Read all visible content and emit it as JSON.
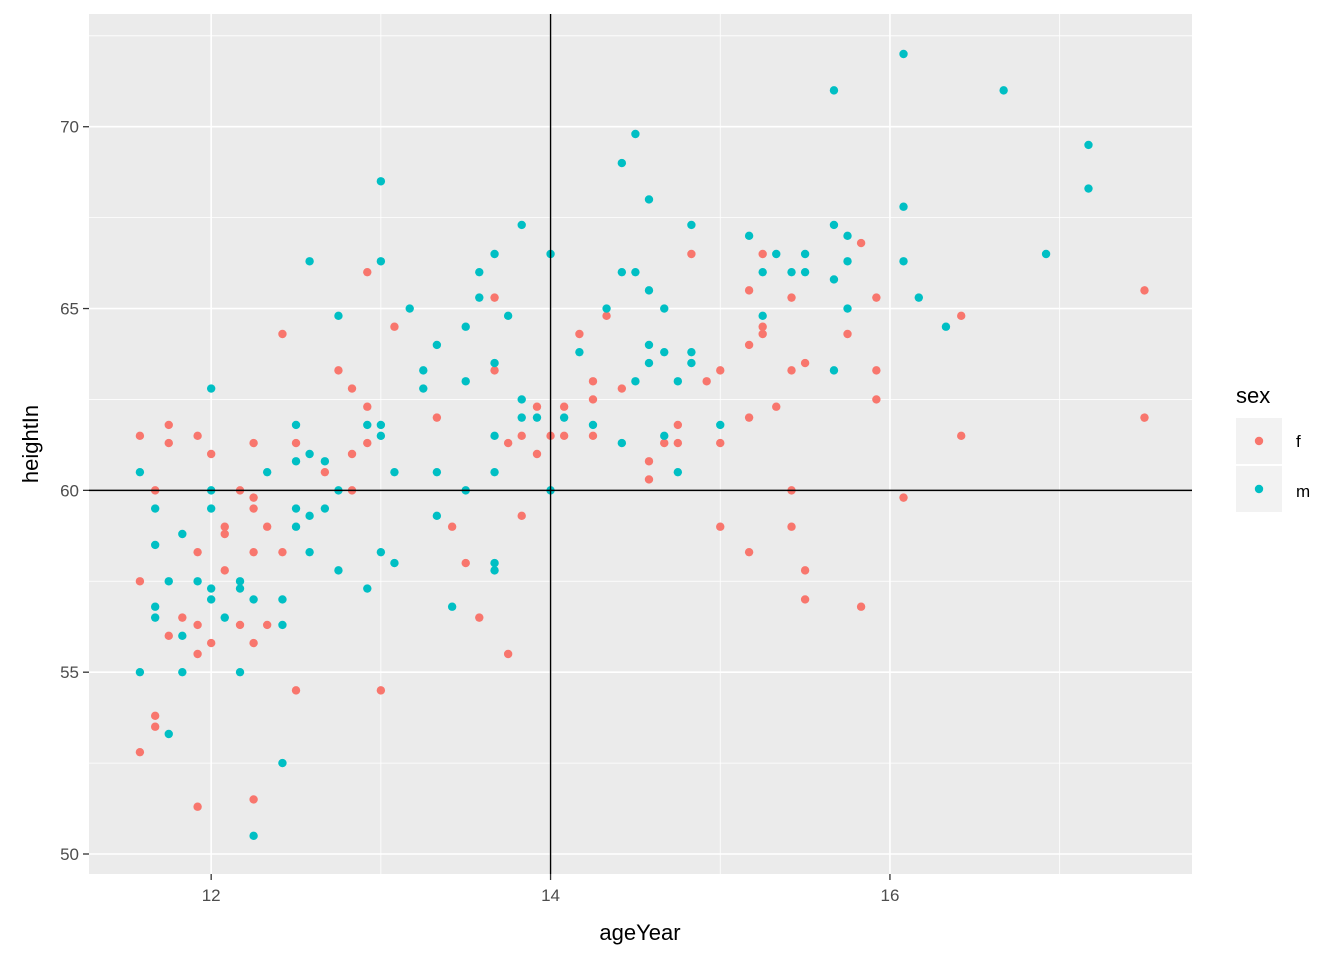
{
  "chart_data": {
    "type": "scatter",
    "xlabel": "ageYear",
    "ylabel": "heightIn",
    "xlim": [
      11.28,
      17.78
    ],
    "ylim": [
      49.45,
      73.1
    ],
    "x_ticks": [
      12,
      14,
      16
    ],
    "y_ticks": [
      50,
      55,
      60,
      65,
      70
    ],
    "grid": true,
    "reference_lines": {
      "vline": 14,
      "hline": 60
    },
    "legend": {
      "title": "sex",
      "placement": "right"
    },
    "colors": {
      "f": "#F8766D",
      "m": "#00BFC4",
      "panel": "#EBEBEB",
      "grid": "#FFFFFF"
    },
    "series": [
      {
        "name": "f",
        "color": "#F8766D",
        "points": [
          [
            11.58,
            61.5
          ],
          [
            11.58,
            57.5
          ],
          [
            11.58,
            52.8
          ],
          [
            11.67,
            60.0
          ],
          [
            11.67,
            53.8
          ],
          [
            11.67,
            53.5
          ],
          [
            11.75,
            61.8
          ],
          [
            11.75,
            61.3
          ],
          [
            11.75,
            56.0
          ],
          [
            11.83,
            56.5
          ],
          [
            11.92,
            61.5
          ],
          [
            11.92,
            58.3
          ],
          [
            11.92,
            56.3
          ],
          [
            11.92,
            55.5
          ],
          [
            11.92,
            51.3
          ],
          [
            12.0,
            61.0
          ],
          [
            12.0,
            55.8
          ],
          [
            12.08,
            59.0
          ],
          [
            12.08,
            58.8
          ],
          [
            12.08,
            57.8
          ],
          [
            12.17,
            60.0
          ],
          [
            12.17,
            56.3
          ],
          [
            12.25,
            61.3
          ],
          [
            12.25,
            59.8
          ],
          [
            12.25,
            59.5
          ],
          [
            12.25,
            58.3
          ],
          [
            12.25,
            55.8
          ],
          [
            12.25,
            51.5
          ],
          [
            12.33,
            59.0
          ],
          [
            12.33,
            56.3
          ],
          [
            12.42,
            64.3
          ],
          [
            12.42,
            58.3
          ],
          [
            12.5,
            61.3
          ],
          [
            12.5,
            54.5
          ],
          [
            12.67,
            60.5
          ],
          [
            12.75,
            63.3
          ],
          [
            12.83,
            62.8
          ],
          [
            12.83,
            61.0
          ],
          [
            12.83,
            60.0
          ],
          [
            12.92,
            66.0
          ],
          [
            12.92,
            62.3
          ],
          [
            12.92,
            61.3
          ],
          [
            13.0,
            54.5
          ],
          [
            13.08,
            64.5
          ],
          [
            13.33,
            62.0
          ],
          [
            13.42,
            59.0
          ],
          [
            13.5,
            58.0
          ],
          [
            13.58,
            56.5
          ],
          [
            13.67,
            65.3
          ],
          [
            13.67,
            63.3
          ],
          [
            13.75,
            61.3
          ],
          [
            13.75,
            55.5
          ],
          [
            13.83,
            61.5
          ],
          [
            13.83,
            59.3
          ],
          [
            13.92,
            62.3
          ],
          [
            13.92,
            61.0
          ],
          [
            14.0,
            61.5
          ],
          [
            14.08,
            62.3
          ],
          [
            14.08,
            61.5
          ],
          [
            14.17,
            64.3
          ],
          [
            14.25,
            63.0
          ],
          [
            14.25,
            62.5
          ],
          [
            14.25,
            61.5
          ],
          [
            14.33,
            64.8
          ],
          [
            14.42,
            62.8
          ],
          [
            14.58,
            60.8
          ],
          [
            14.58,
            60.3
          ],
          [
            14.67,
            61.3
          ],
          [
            14.75,
            61.8
          ],
          [
            14.75,
            61.3
          ],
          [
            14.83,
            66.5
          ],
          [
            14.92,
            63.0
          ],
          [
            15.0,
            63.3
          ],
          [
            15.0,
            61.3
          ],
          [
            15.0,
            59.0
          ],
          [
            15.17,
            65.5
          ],
          [
            15.17,
            64.0
          ],
          [
            15.17,
            62.0
          ],
          [
            15.17,
            58.3
          ],
          [
            15.25,
            66.5
          ],
          [
            15.25,
            64.5
          ],
          [
            15.25,
            64.3
          ],
          [
            15.33,
            62.3
          ],
          [
            15.42,
            65.3
          ],
          [
            15.42,
            63.3
          ],
          [
            15.42,
            60.0
          ],
          [
            15.42,
            59.0
          ],
          [
            15.5,
            63.5
          ],
          [
            15.5,
            57.8
          ],
          [
            15.5,
            57.0
          ],
          [
            15.75,
            64.3
          ],
          [
            15.83,
            66.8
          ],
          [
            15.83,
            56.8
          ],
          [
            15.92,
            65.3
          ],
          [
            15.92,
            63.3
          ],
          [
            15.92,
            62.5
          ],
          [
            16.08,
            59.8
          ],
          [
            16.42,
            64.8
          ],
          [
            16.42,
            61.5
          ],
          [
            17.5,
            65.5
          ],
          [
            17.5,
            62.0
          ]
        ]
      },
      {
        "name": "m",
        "color": "#00BFC4",
        "points": [
          [
            11.58,
            60.5
          ],
          [
            11.58,
            55.0
          ],
          [
            11.67,
            59.5
          ],
          [
            11.67,
            58.5
          ],
          [
            11.67,
            56.8
          ],
          [
            11.67,
            56.5
          ],
          [
            11.75,
            57.5
          ],
          [
            11.75,
            53.3
          ],
          [
            11.83,
            58.8
          ],
          [
            11.83,
            56.0
          ],
          [
            11.83,
            55.0
          ],
          [
            11.92,
            57.5
          ],
          [
            12.0,
            62.8
          ],
          [
            12.0,
            60.0
          ],
          [
            12.0,
            59.5
          ],
          [
            12.0,
            57.3
          ],
          [
            12.0,
            57.0
          ],
          [
            12.08,
            56.5
          ],
          [
            12.17,
            57.5
          ],
          [
            12.17,
            57.3
          ],
          [
            12.17,
            55.0
          ],
          [
            12.25,
            57.0
          ],
          [
            12.25,
            50.5
          ],
          [
            12.33,
            60.5
          ],
          [
            12.42,
            57.0
          ],
          [
            12.42,
            56.3
          ],
          [
            12.42,
            52.5
          ],
          [
            12.5,
            61.8
          ],
          [
            12.5,
            60.8
          ],
          [
            12.5,
            59.5
          ],
          [
            12.5,
            59.0
          ],
          [
            12.58,
            66.3
          ],
          [
            12.58,
            61.0
          ],
          [
            12.58,
            59.3
          ],
          [
            12.58,
            58.3
          ],
          [
            12.67,
            60.8
          ],
          [
            12.67,
            59.5
          ],
          [
            12.75,
            64.8
          ],
          [
            12.75,
            60.0
          ],
          [
            12.75,
            57.8
          ],
          [
            12.92,
            61.8
          ],
          [
            12.92,
            57.3
          ],
          [
            13.0,
            68.5
          ],
          [
            13.0,
            66.3
          ],
          [
            13.0,
            61.8
          ],
          [
            13.0,
            61.5
          ],
          [
            13.0,
            58.3
          ],
          [
            13.08,
            60.5
          ],
          [
            13.08,
            58.0
          ],
          [
            13.17,
            65.0
          ],
          [
            13.25,
            63.3
          ],
          [
            13.25,
            62.8
          ],
          [
            13.33,
            64.0
          ],
          [
            13.33,
            60.5
          ],
          [
            13.33,
            59.3
          ],
          [
            13.42,
            56.8
          ],
          [
            13.5,
            64.5
          ],
          [
            13.5,
            63.0
          ],
          [
            13.5,
            60.0
          ],
          [
            13.58,
            66.0
          ],
          [
            13.58,
            65.3
          ],
          [
            13.67,
            66.5
          ],
          [
            13.67,
            63.5
          ],
          [
            13.67,
            61.5
          ],
          [
            13.67,
            60.5
          ],
          [
            13.67,
            58.0
          ],
          [
            13.67,
            57.8
          ],
          [
            13.75,
            64.8
          ],
          [
            13.83,
            67.3
          ],
          [
            13.83,
            62.5
          ],
          [
            13.83,
            62.0
          ],
          [
            13.92,
            62.0
          ],
          [
            14.0,
            66.5
          ],
          [
            14.0,
            60.0
          ],
          [
            14.08,
            62.0
          ],
          [
            14.17,
            63.8
          ],
          [
            14.25,
            61.8
          ],
          [
            14.33,
            65.0
          ],
          [
            14.42,
            69.0
          ],
          [
            14.42,
            66.0
          ],
          [
            14.42,
            61.3
          ],
          [
            14.5,
            69.8
          ],
          [
            14.5,
            66.0
          ],
          [
            14.5,
            63.0
          ],
          [
            14.58,
            68.0
          ],
          [
            14.58,
            65.5
          ],
          [
            14.58,
            64.0
          ],
          [
            14.58,
            63.5
          ],
          [
            14.67,
            65.0
          ],
          [
            14.67,
            63.8
          ],
          [
            14.67,
            61.5
          ],
          [
            14.75,
            63.0
          ],
          [
            14.75,
            60.5
          ],
          [
            14.83,
            67.3
          ],
          [
            14.83,
            63.8
          ],
          [
            14.83,
            63.5
          ],
          [
            15.0,
            61.8
          ],
          [
            15.17,
            67.0
          ],
          [
            15.25,
            66.0
          ],
          [
            15.25,
            64.8
          ],
          [
            15.33,
            66.5
          ],
          [
            15.42,
            66.0
          ],
          [
            15.5,
            66.5
          ],
          [
            15.5,
            66.0
          ],
          [
            15.67,
            71.0
          ],
          [
            15.67,
            67.3
          ],
          [
            15.67,
            65.8
          ],
          [
            15.67,
            63.3
          ],
          [
            15.75,
            67.0
          ],
          [
            15.75,
            66.3
          ],
          [
            15.75,
            65.0
          ],
          [
            16.08,
            72.0
          ],
          [
            16.08,
            67.8
          ],
          [
            16.08,
            66.3
          ],
          [
            16.17,
            65.3
          ],
          [
            16.33,
            64.5
          ],
          [
            16.67,
            71.0
          ],
          [
            16.92,
            66.5
          ],
          [
            17.17,
            69.5
          ],
          [
            17.17,
            68.3
          ]
        ]
      }
    ]
  }
}
